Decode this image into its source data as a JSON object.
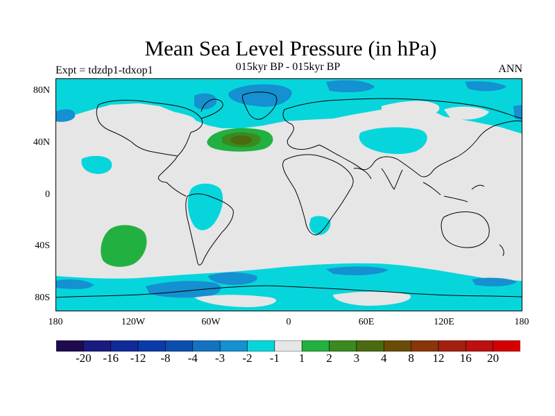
{
  "title": "Mean Sea Level Pressure (in hPa)",
  "subtitle": "015kyr BP - 015kyr BP",
  "left_label": "Expt = tdzdp1-tdxop1",
  "right_label": "ANN",
  "lat_ticks": [
    "80N",
    "40N",
    "0",
    "40S",
    "80S"
  ],
  "lon_ticks": [
    "180",
    "120W",
    "60W",
    "0",
    "60E",
    "120E",
    "180"
  ],
  "colorbar": {
    "colors": [
      "#1f0a4f",
      "#1a1a80",
      "#102a98",
      "#0a3ba8",
      "#0b4fae",
      "#1572c0",
      "#1590d0",
      "#06d6dc",
      "#e6e6e6",
      "#22b140",
      "#3a8a20",
      "#4c6a10",
      "#6a4c08",
      "#8a3608",
      "#a32010",
      "#bd1010",
      "#d40000"
    ],
    "labels": [
      "-20",
      "-16",
      "-12",
      "-8",
      "-4",
      "-3",
      "-2",
      "-1",
      "1",
      "2",
      "3",
      "4",
      "8",
      "12",
      "16",
      "20"
    ]
  },
  "fill_colors": {
    "background": "#e6e6e6",
    "neg1": "#06d6dc",
    "neg2": "#1590d0",
    "neg3": "#1572c0",
    "pos1": "#22b140",
    "pos2": "#3a8a20",
    "pos3": "#4c6a10"
  }
}
